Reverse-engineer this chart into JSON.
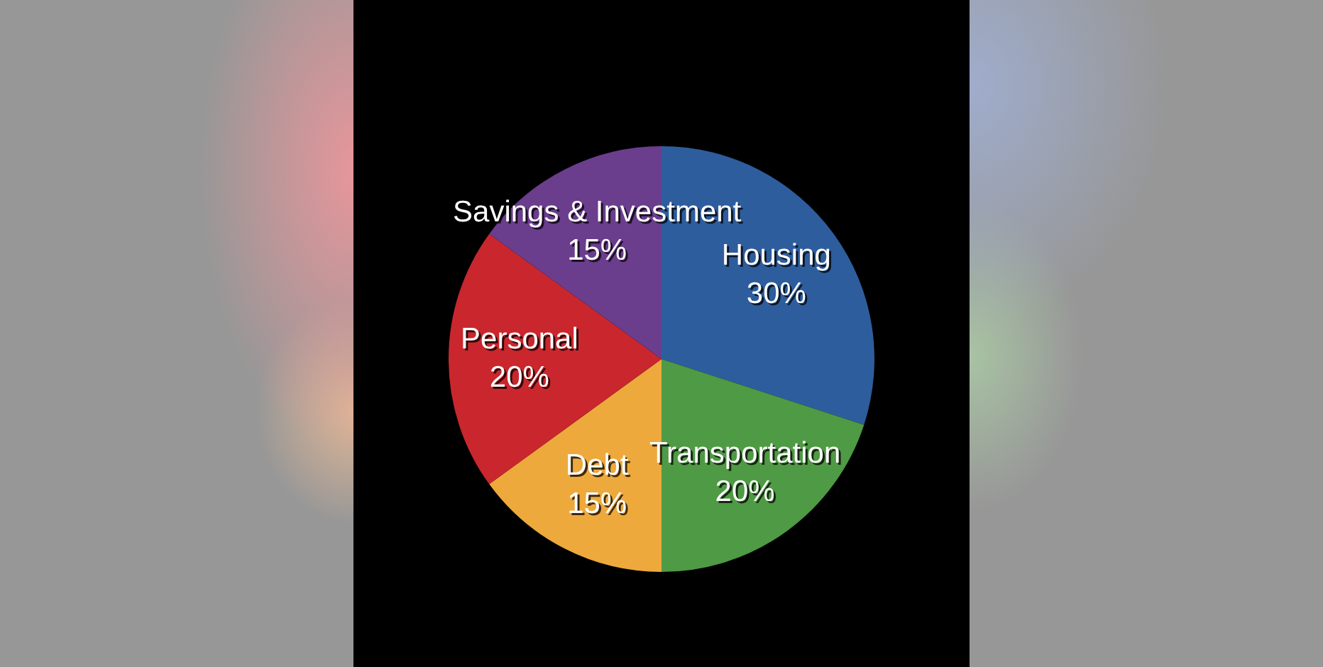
{
  "chart_data": {
    "type": "pie",
    "categories": [
      "Housing",
      "Transportation",
      "Debt",
      "Personal",
      "Savings & Investment"
    ],
    "values": [
      30,
      20,
      15,
      20,
      15
    ],
    "colors": [
      "#2e5d9e",
      "#4f9a44",
      "#eea93c",
      "#c9272d",
      "#6b3d8d"
    ],
    "value_labels": [
      "30%",
      "20%",
      "15%",
      "20%",
      "15%"
    ]
  }
}
